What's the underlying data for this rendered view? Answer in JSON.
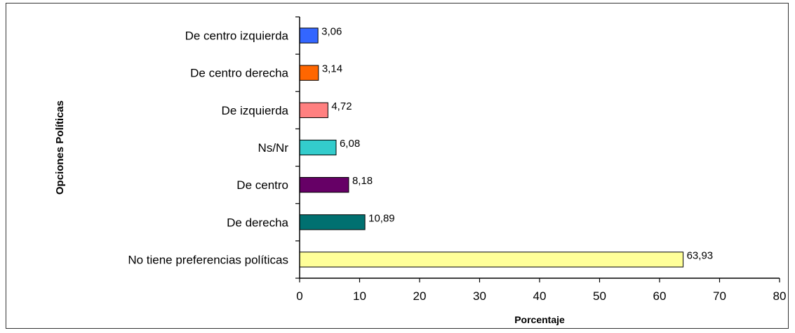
{
  "chart_data": {
    "type": "bar",
    "orientation": "horizontal",
    "title": "",
    "xlabel": "Porcentaje",
    "ylabel": "Opciones Políticas",
    "categories": [
      "De centro izquierda",
      "De centro derecha",
      "De izquierda",
      "Ns/Nr",
      "De centro",
      "De derecha",
      "No tiene preferencias políticas"
    ],
    "values": [
      3.06,
      3.14,
      4.72,
      6.08,
      8.18,
      10.89,
      63.93
    ],
    "data_labels": [
      "3,06",
      "3,14",
      "4,72",
      "6,08",
      "8,18",
      "10,89",
      "63,93"
    ],
    "colors": [
      "#3366ff",
      "#ff6600",
      "#ff8080",
      "#33cccc",
      "#660066",
      "#007070",
      "#ffff99"
    ],
    "xlim": [
      0,
      80
    ],
    "xticks": [
      0,
      10,
      20,
      30,
      40,
      50,
      60,
      70,
      80
    ],
    "xtick_labels": [
      "0",
      "10",
      "20",
      "30",
      "40",
      "50",
      "60",
      "70",
      "80"
    ],
    "grid": false,
    "legend": "none"
  }
}
